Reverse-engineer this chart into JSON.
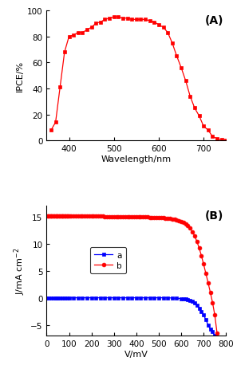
{
  "panel_A": {
    "label": "(A)",
    "wavelength": [
      360,
      370,
      380,
      390,
      400,
      410,
      420,
      430,
      440,
      450,
      460,
      470,
      480,
      490,
      500,
      510,
      520,
      530,
      540,
      550,
      560,
      570,
      580,
      590,
      600,
      610,
      620,
      630,
      640,
      650,
      660,
      670,
      680,
      690,
      700,
      710,
      720,
      730,
      740,
      750
    ],
    "ipce": [
      8,
      14,
      41,
      68,
      80,
      81,
      83,
      83,
      85,
      87,
      90,
      91,
      93,
      94,
      95,
      95,
      94,
      94,
      93,
      93,
      93,
      93,
      92,
      91,
      89,
      87,
      83,
      75,
      65,
      56,
      46,
      34,
      25,
      19,
      11,
      8,
      3,
      1.5,
      0.5,
      0
    ],
    "color": "#ff0000",
    "xlabel": "Wavelength/nm",
    "ylabel": "IPCE/%",
    "xlim": [
      350,
      750
    ],
    "ylim": [
      0,
      100
    ],
    "xticks": [
      400,
      500,
      600,
      700
    ],
    "yticks": [
      0,
      20,
      40,
      60,
      80,
      100
    ]
  },
  "panel_B": {
    "label": "(B)",
    "dark_V": [
      0,
      10,
      20,
      30,
      40,
      50,
      60,
      70,
      80,
      90,
      100,
      120,
      140,
      160,
      180,
      200,
      220,
      240,
      260,
      280,
      300,
      320,
      340,
      360,
      380,
      400,
      420,
      440,
      460,
      480,
      500,
      520,
      540,
      560,
      580,
      600,
      610,
      620,
      630,
      640,
      650,
      660,
      670,
      680,
      690,
      700,
      710,
      720,
      730,
      740,
      750,
      760
    ],
    "dark_J": [
      0,
      0,
      0,
      0,
      0,
      0,
      0,
      0,
      0,
      0,
      0,
      0,
      0,
      0,
      0,
      0,
      0,
      0,
      0,
      0,
      0,
      0,
      0,
      0,
      0,
      0,
      0,
      0,
      0,
      0,
      0,
      0,
      0,
      -0.05,
      -0.1,
      -0.15,
      -0.2,
      -0.25,
      -0.35,
      -0.5,
      -0.7,
      -1.0,
      -1.4,
      -1.9,
      -2.5,
      -3.2,
      -4.0,
      -5.0,
      -5.8,
      -6.3,
      -7.0,
      -7.5
    ],
    "light_V_dense": [
      0,
      5,
      10,
      15,
      20,
      25,
      30,
      35,
      40,
      45,
      50,
      55,
      60,
      65,
      70,
      75,
      80,
      85,
      90,
      95,
      100,
      110,
      120,
      130,
      140,
      150,
      160,
      170,
      180,
      190,
      200,
      210,
      220,
      230,
      240,
      250,
      260,
      270,
      280,
      290,
      300,
      310,
      320,
      330,
      340,
      350,
      360,
      370,
      380,
      390,
      400,
      410,
      420,
      430,
      440,
      450,
      460,
      470,
      480,
      490,
      500,
      510,
      520,
      530,
      540,
      550,
      560,
      570,
      580,
      590,
      600,
      610,
      620,
      630,
      640,
      650,
      660,
      670,
      680,
      690,
      700,
      710,
      720,
      730,
      740,
      750,
      760
    ],
    "light_J_dense": [
      15.15,
      15.15,
      15.14,
      15.14,
      15.14,
      15.13,
      15.13,
      15.13,
      15.12,
      15.12,
      15.12,
      15.12,
      15.11,
      15.11,
      15.11,
      15.1,
      15.1,
      15.1,
      15.09,
      15.09,
      15.09,
      15.08,
      15.08,
      15.07,
      15.07,
      15.06,
      15.06,
      15.05,
      15.05,
      15.04,
      15.04,
      15.03,
      15.02,
      15.02,
      15.01,
      15.01,
      15.0,
      15.0,
      14.99,
      14.99,
      14.98,
      14.97,
      14.97,
      14.96,
      14.95,
      14.95,
      14.94,
      14.93,
      14.93,
      14.92,
      14.91,
      14.9,
      14.89,
      14.88,
      14.87,
      14.86,
      14.85,
      14.84,
      14.82,
      14.8,
      14.78,
      14.76,
      14.73,
      14.7,
      14.66,
      14.61,
      14.55,
      14.47,
      14.38,
      14.25,
      14.1,
      13.9,
      13.65,
      13.3,
      12.8,
      12.2,
      11.4,
      10.4,
      9.2,
      7.8,
      6.2,
      4.5,
      2.8,
      1.0,
      -0.9,
      -3.2,
      -6.5
    ],
    "dark_color": "#0000ff",
    "light_color": "#ff0000",
    "dark_marker": "s",
    "light_marker": "o",
    "xlabel": "V/mV",
    "ylabel": "J/mA cm$^{-2}$",
    "xlim": [
      0,
      800
    ],
    "ylim": [
      -7,
      17
    ],
    "xticks": [
      0,
      100,
      200,
      300,
      400,
      500,
      600,
      700,
      800
    ],
    "yticks": [
      -5,
      0,
      5,
      10,
      15
    ],
    "legend_a": "a",
    "legend_b": "b"
  },
  "background_color": "#ffffff",
  "fig_width": 2.92,
  "fig_height": 4.64
}
